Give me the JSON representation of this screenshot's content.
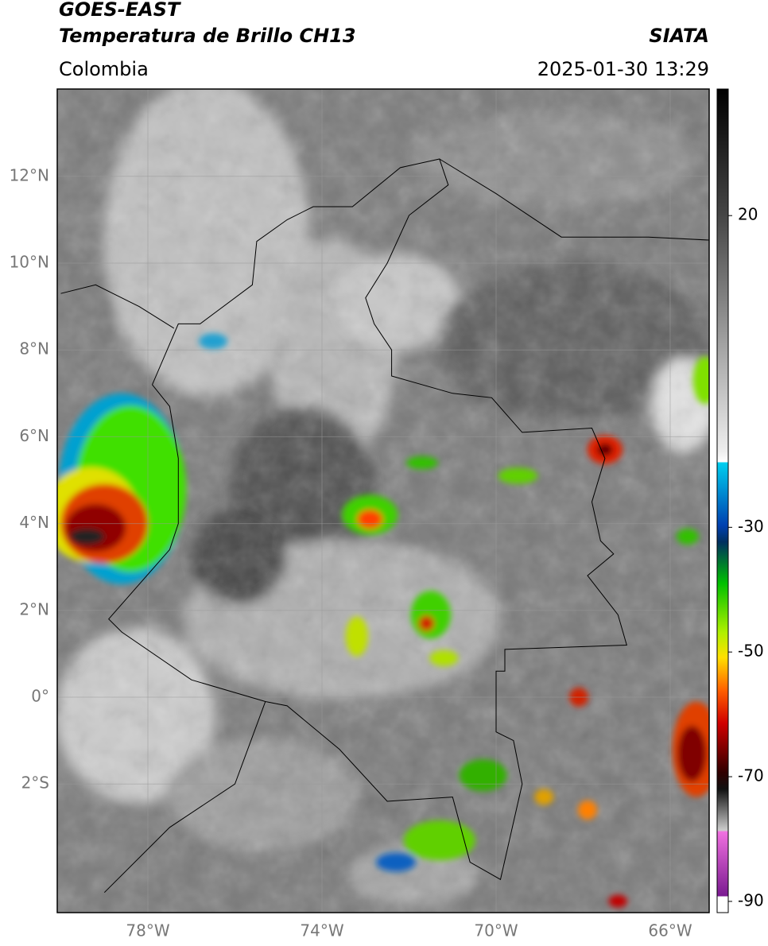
{
  "header": {
    "satellite": "GOES-EAST",
    "product": "Temperatura de Brillo CH13",
    "source": "SIATA",
    "region": "Colombia",
    "datetime": "2025-01-30 13:29"
  },
  "map": {
    "lat_labels": [
      "12°N",
      "10°N",
      "8°N",
      "6°N",
      "4°N",
      "2°N",
      "0°",
      "2°S"
    ],
    "lon_labels": [
      "78°W",
      "74°W",
      "70°W",
      "66°W"
    ]
  },
  "colorbar": {
    "range": [
      40.3,
      -91.8
    ],
    "ticks": [
      20,
      -30,
      -50,
      -70,
      -90
    ]
  }
}
